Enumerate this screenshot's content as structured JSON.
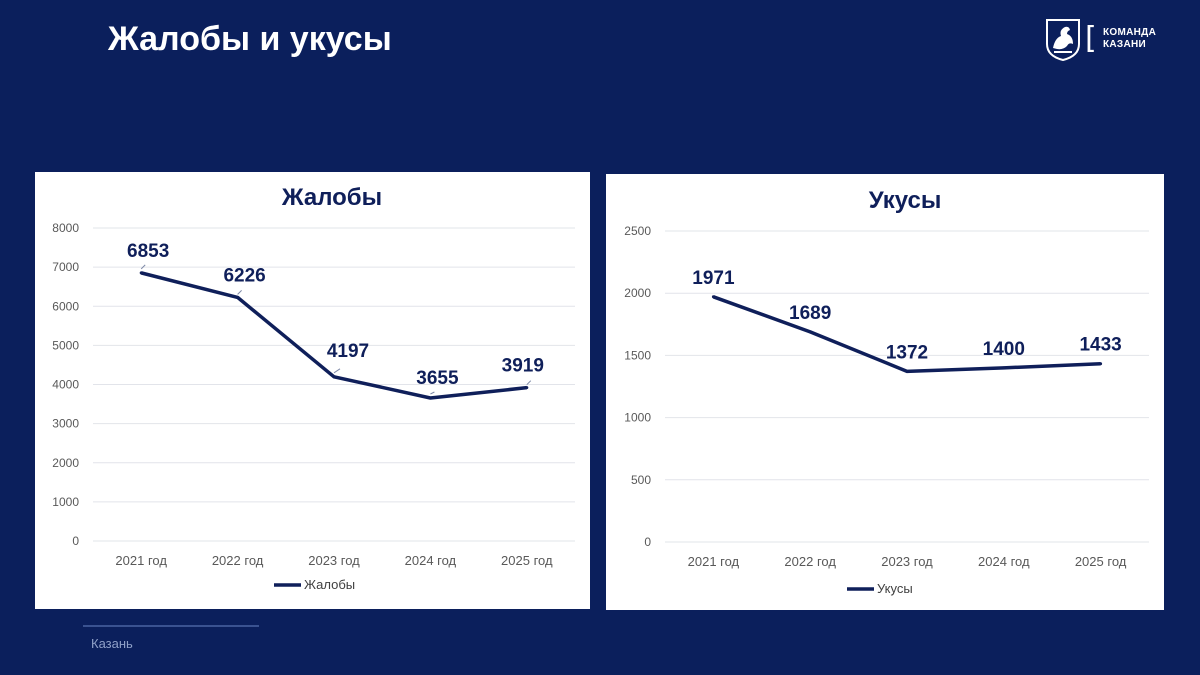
{
  "slide": {
    "title": "Жалобы и укусы",
    "footer": "Казань"
  },
  "logo": {
    "line1": "КОМАНДА",
    "line2": "КАЗАНИ",
    "icon": "kazan-coat-of-arms-icon"
  },
  "colors": {
    "background": "#0b1f5c",
    "series": "#0f1f5a",
    "grid": "#e2e4ea",
    "tick": "#595959"
  },
  "chart_data": [
    {
      "type": "line",
      "title": "Жалобы",
      "categories": [
        "2021 год",
        "2022 год",
        "2023 год",
        "2024 год",
        "2025 год"
      ],
      "series": [
        {
          "name": "Жалобы",
          "values": [
            6853,
            6226,
            4197,
            3655,
            3919
          ]
        }
      ],
      "yticks": [
        "0",
        "1000",
        "2000",
        "3000",
        "4000",
        "5000",
        "6000",
        "7000",
        "8000"
      ],
      "ylim": [
        0,
        8000
      ],
      "grid": true,
      "legend": "bottom",
      "data_labels": true
    },
    {
      "type": "line",
      "title": "Укусы",
      "categories": [
        "2021 год",
        "2022 год",
        "2023 год",
        "2024 год",
        "2025 год"
      ],
      "series": [
        {
          "name": "Укусы",
          "values": [
            1971,
            1689,
            1372,
            1400,
            1433
          ]
        }
      ],
      "yticks": [
        "0",
        "500",
        "1000",
        "1500",
        "2000",
        "2500"
      ],
      "ylim": [
        0,
        2500
      ],
      "grid": true,
      "legend": "bottom",
      "data_labels": true
    }
  ]
}
